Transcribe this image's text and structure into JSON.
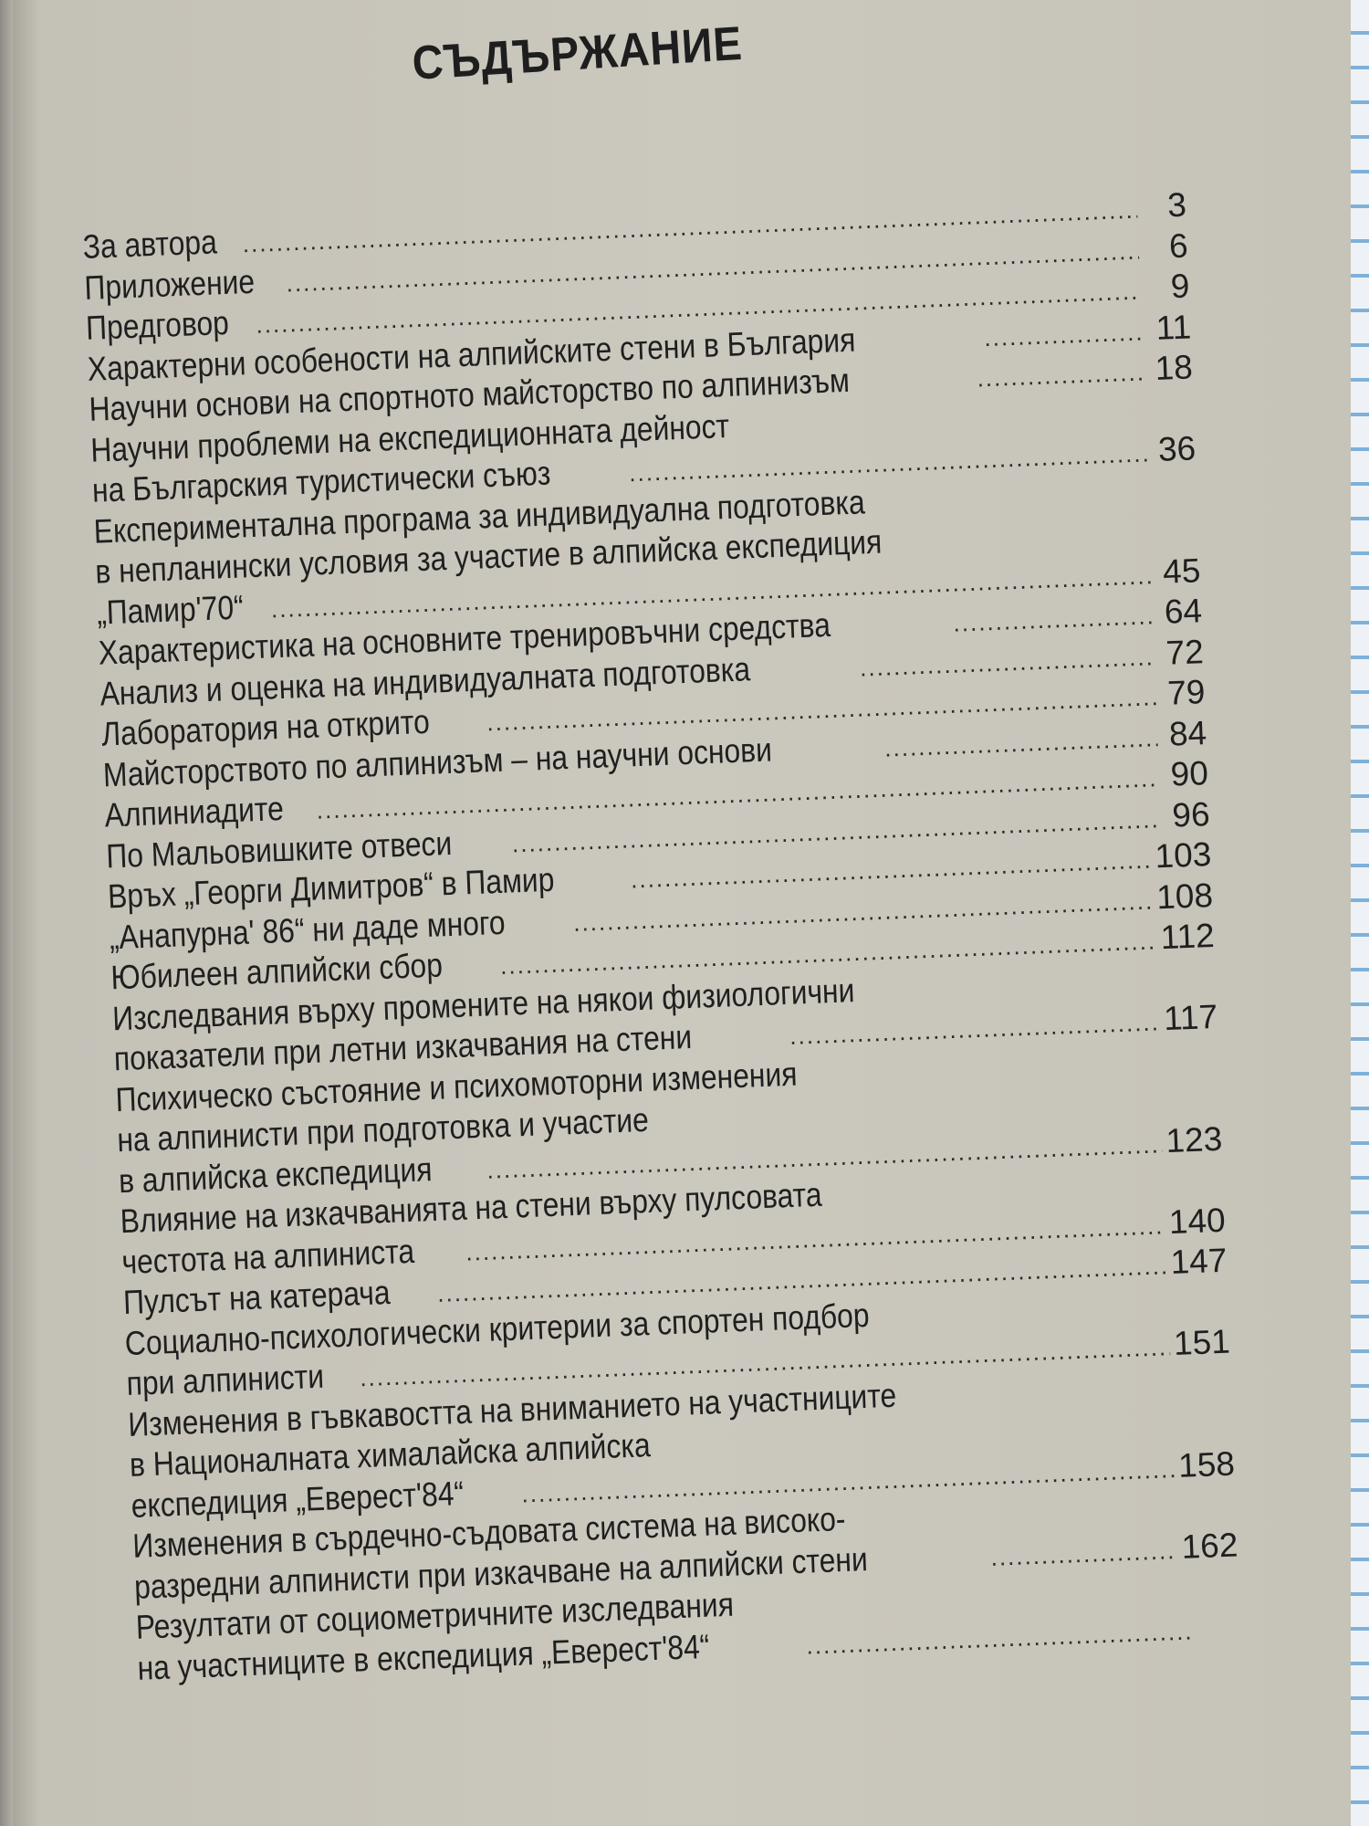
{
  "title": "СЪДЪРЖАНИЕ",
  "entries": [
    {
      "lines": [
        "За автора"
      ],
      "page": "3"
    },
    {
      "lines": [
        "Приложение"
      ],
      "page": "6"
    },
    {
      "lines": [
        "Предговор"
      ],
      "page": "9"
    },
    {
      "lines": [
        "Характерни особености на алпийските стени в България"
      ],
      "page": "11"
    },
    {
      "lines": [
        "Научни основи на спортното майсторство по алпинизъм"
      ],
      "page": "18"
    },
    {
      "lines": [
        "Научни проблеми на експедиционната дейност",
        "на Българския туристически съюз"
      ],
      "page": "36"
    },
    {
      "lines": [
        "Експериментална програма за индивидуална подготовка",
        "в непланински условия за участие в алпийска експедиция",
        "„Памир'70“"
      ],
      "page": "45"
    },
    {
      "lines": [
        "Характеристика на основните тренировъчни средства"
      ],
      "page": "64"
    },
    {
      "lines": [
        "Анализ и оценка на индивидуалната подготовка"
      ],
      "page": "72"
    },
    {
      "lines": [
        "Лаборатория на открито"
      ],
      "page": "79"
    },
    {
      "lines": [
        "Майсторството по алпинизъм – на научни основи"
      ],
      "page": "84"
    },
    {
      "lines": [
        "Алпиниадите"
      ],
      "page": "90"
    },
    {
      "lines": [
        "По Мальовишките отвеси"
      ],
      "page": "96"
    },
    {
      "lines": [
        "Връх „Георги Димитров“ в Памир"
      ],
      "page": "103"
    },
    {
      "lines": [
        "„Анапурна' 86“ ни даде много"
      ],
      "page": "108"
    },
    {
      "lines": [
        "Юбилеен алпийски сбор"
      ],
      "page": "112"
    },
    {
      "lines": [
        "Изследвания върху промените на някои физиологични",
        "показатели при летни изкачвания на стени"
      ],
      "page": "117"
    },
    {
      "lines": [
        "Психическо състояние и психомоторни изменения",
        "на алпинисти при подготовка и участие",
        "в алпийска експедиция"
      ],
      "page": "123"
    },
    {
      "lines": [
        "Влияние на изкачванията на стени върху пулсовата",
        "честота на алпиниста"
      ],
      "page": "140"
    },
    {
      "lines": [
        "Пулсът на катерача"
      ],
      "page": "147"
    },
    {
      "lines": [
        "Социално-психологически критерии за спортен подбор",
        "при алпинисти"
      ],
      "page": "151"
    },
    {
      "lines": [
        "Изменения в гъвкавостта на вниманието на участниците",
        "в Националната хималайска алпийска",
        "експедиция „Еверест'84“"
      ],
      "page": "158"
    },
    {
      "lines": [
        "Изменения в сърдечно-съдовата система на високо-",
        "разредни алпинисти при изкачване на алпийски стени"
      ],
      "page": "162"
    },
    {
      "lines": [
        "Резултати от социометричните изследвания",
        "на участниците в експедиция „Еверест'84“"
      ],
      "page": ""
    }
  ]
}
